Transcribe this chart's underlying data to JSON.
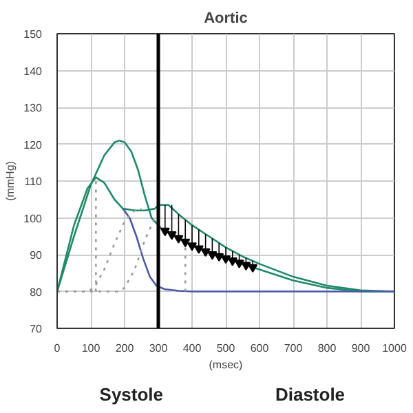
{
  "chart_data": {
    "type": "line",
    "title": "Aortic",
    "xlabel": "(msec)",
    "ylabel": "(mmHg)",
    "annotations": [
      "Systole",
      "Diastole"
    ],
    "xlim": [
      0,
      1000
    ],
    "ylim": [
      70,
      150
    ],
    "xticks": [
      0,
      100,
      200,
      300,
      400,
      500,
      600,
      700,
      800,
      900,
      1000
    ],
    "yticks": [
      70,
      80,
      90,
      100,
      110,
      120,
      130,
      140,
      150
    ],
    "grid": true,
    "series": [
      {
        "color": "#1f8a66",
        "x": [
          0,
          50,
          100,
          140,
          170,
          185,
          200,
          220,
          240,
          260,
          280,
          295,
          310,
          350,
          400,
          450,
          500,
          550,
          600,
          700,
          800,
          900,
          1000
        ],
        "values": [
          80,
          95,
          109,
          117,
          120.5,
          121,
          120.5,
          118,
          113,
          106,
          100,
          98.5,
          97,
          95,
          92.5,
          90.5,
          89,
          87.5,
          86,
          83,
          81,
          80,
          80
        ]
      },
      {
        "color": "#1f8a66",
        "x": [
          0,
          50,
          90,
          115,
          140,
          170,
          195,
          230,
          260,
          290,
          300,
          330,
          360,
          400,
          450,
          500,
          550,
          600,
          700,
          800,
          900,
          1000
        ],
        "values": [
          80,
          98,
          108,
          111,
          109.5,
          105,
          102.5,
          102,
          102,
          102.5,
          103.5,
          103.5,
          101,
          98,
          95,
          92,
          89.5,
          87.5,
          84,
          81.6,
          80.3,
          80
        ]
      },
      {
        "color": "#4a5aa8",
        "x": [
          195,
          215,
          235,
          255,
          275,
          295,
          320,
          360,
          400,
          600,
          800,
          1000
        ],
        "values": [
          102.5,
          100,
          95,
          89,
          84,
          81.5,
          80.6,
          80.2,
          80,
          80,
          80,
          80
        ]
      },
      {
        "color": "#999999",
        "line_style": "dotted",
        "x": [
          0,
          90,
          110,
          140,
          170,
          200,
          230,
          250
        ],
        "values": [
          80,
          80,
          81,
          86,
          93,
          99,
          102,
          102.5
        ]
      },
      {
        "color": "#999999",
        "line_style": "dotted",
        "x": [
          0,
          180,
          200,
          230,
          260,
          290,
          300
        ],
        "values": [
          80,
          80,
          81,
          86,
          94,
          100,
          101
        ]
      },
      {
        "color": "#999999",
        "line_style": "dotted",
        "x": [
          115,
          115
        ],
        "values": [
          80,
          111
        ]
      },
      {
        "color": "#999999",
        "line_style": "dotted",
        "x": [
          380,
          380
        ],
        "values": [
          80,
          93.5
        ]
      },
      {
        "type": "scatter",
        "marker": "triangle",
        "color": "#000000",
        "x": [
          320,
          340,
          360,
          380,
          400,
          420,
          440,
          460,
          480,
          500,
          520,
          540,
          560,
          580
        ],
        "values": [
          96.5,
          95.5,
          94.5,
          93.5,
          92.5,
          91.7,
          90.9,
          90.1,
          89.6,
          89,
          88.4,
          87.8,
          87.2,
          86.6
        ],
        "errors": [
          [
            96.5,
            103.5
          ],
          [
            95.5,
            103.5
          ],
          [
            94.5,
            101
          ],
          [
            93.5,
            99.5
          ],
          [
            92.5,
            98
          ],
          [
            91.7,
            96.8
          ],
          [
            90.9,
            95.6
          ],
          [
            90.1,
            94.4
          ],
          [
            89.6,
            93.2
          ],
          [
            89,
            92
          ],
          [
            88.4,
            91
          ],
          [
            87.8,
            90
          ],
          [
            87.2,
            89.2
          ],
          [
            86.6,
            88.4
          ]
        ]
      }
    ],
    "ref_lines": [
      {
        "axis": "x",
        "value": 300,
        "color": "#000000"
      }
    ]
  }
}
